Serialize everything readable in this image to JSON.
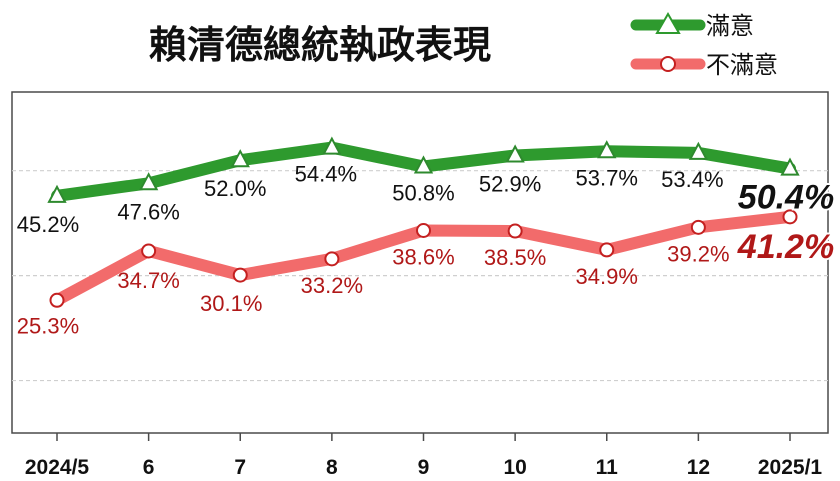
{
  "chart_data": {
    "type": "line",
    "title": "賴清德總統執政表現",
    "categories": [
      "2024/5",
      "6",
      "7",
      "8",
      "9",
      "10",
      "11",
      "12",
      "2025/1"
    ],
    "series": [
      {
        "name": "滿意",
        "values": [
          45.2,
          47.6,
          52.0,
          54.4,
          50.8,
          52.9,
          53.7,
          53.4,
          50.4
        ],
        "labels": [
          "45.2%",
          "47.6%",
          "52.0%",
          "54.4%",
          "50.8%",
          "52.9%",
          "53.7%",
          "53.4%",
          "50.4%"
        ],
        "color": "#2e9a2e",
        "label_color": "#111111",
        "marker": "triangle"
      },
      {
        "name": "不滿意",
        "values": [
          25.3,
          34.7,
          30.1,
          33.2,
          38.6,
          38.5,
          34.9,
          39.2,
          41.2
        ],
        "labels": [
          "25.3%",
          "34.7%",
          "30.1%",
          "33.2%",
          "38.6%",
          "38.5%",
          "34.9%",
          "39.2%",
          "41.2%"
        ],
        "color": "#f26b6b",
        "label_color": "#b01818",
        "marker": "circle"
      }
    ],
    "ylim": [
      0,
      65
    ],
    "grid": true,
    "legend": "top-right"
  }
}
